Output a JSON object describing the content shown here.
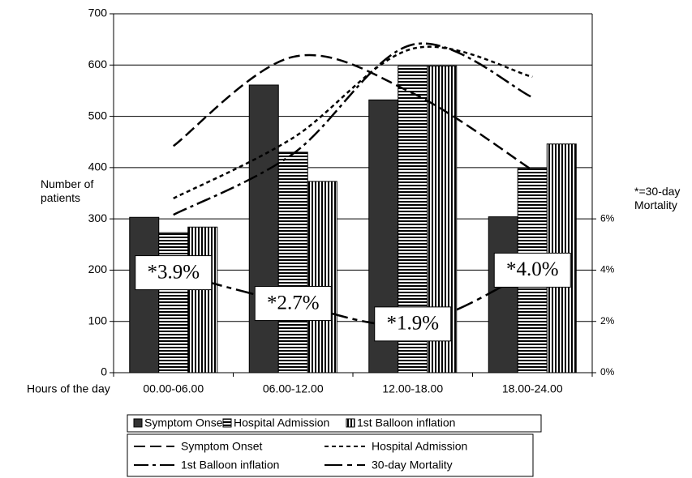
{
  "chart_data": {
    "type": "bar",
    "categories": [
      "00.00-06.00",
      "06.00-12.00",
      "12.00-18.00",
      "18.00-24.00"
    ],
    "xlabel": "Hours of the day",
    "ylabel": "Number of patients",
    "y2label": "*=30-day Mortality",
    "ylim": [
      0,
      700
    ],
    "yticks": [
      0,
      100,
      200,
      300,
      400,
      500,
      600,
      700
    ],
    "y2lim": [
      0,
      14
    ],
    "y2ticks": [
      {
        "value": 0,
        "label": "0%"
      },
      {
        "value": 2,
        "label": "2%"
      },
      {
        "value": 4,
        "label": "4%"
      },
      {
        "value": 6,
        "label": "6%"
      }
    ],
    "grid": true,
    "series": [
      {
        "name": "Symptom Onset",
        "type": "bar",
        "color": "#333333",
        "values": [
          303,
          561,
          532,
          304
        ]
      },
      {
        "name": "Hospital Admission",
        "type": "bar",
        "color": "#000000",
        "hatch": "horizontal",
        "values": [
          273,
          430,
          598,
          398
        ]
      },
      {
        "name": "1st Balloon inflation",
        "type": "bar",
        "color": "#000000",
        "hatch": "vertical",
        "values": [
          284,
          373,
          598,
          446
        ]
      },
      {
        "name": "Symptom Onset",
        "type": "line",
        "color": "#000000",
        "dash": "14 6",
        "values": [
          442,
          616,
          545,
          395
        ]
      },
      {
        "name": "Hospital Admission",
        "type": "line",
        "color": "#000000",
        "dash": "5 4",
        "values": [
          340,
          458,
          632,
          577
        ]
      },
      {
        "name": "1st Balloon inflation",
        "type": "line",
        "color": "#000000",
        "dash": "18 5 4 5",
        "values": [
          308,
          427,
          640,
          537
        ]
      },
      {
        "name": "30-day Mortality",
        "type": "line",
        "axis": "y2",
        "color": "#000000",
        "dash": "22 6 6 6",
        "values": [
          3.9,
          2.7,
          1.9,
          4.0
        ],
        "value_labels": [
          "*3.9%",
          "*2.7%",
          "*1.9%",
          "*4.0%"
        ]
      }
    ]
  }
}
